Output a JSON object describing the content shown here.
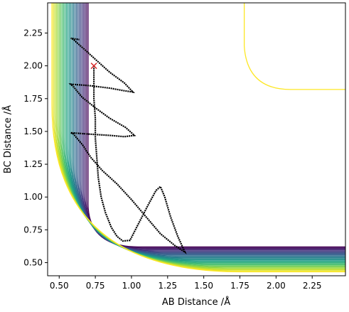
{
  "chart_data": {
    "type": "contour",
    "xlabel": "AB Distance /Å",
    "ylabel": "BC Distance /Å",
    "xlim": [
      0.42,
      2.48
    ],
    "ylim": [
      0.4,
      2.48
    ],
    "xticks": [
      "0.50",
      "0.75",
      "1.00",
      "1.25",
      "1.50",
      "1.75",
      "2.00",
      "2.25"
    ],
    "yticks": [
      "0.50",
      "0.75",
      "1.00",
      "1.25",
      "1.50",
      "1.75",
      "2.00",
      "2.25"
    ],
    "xtick_values": [
      0.5,
      0.75,
      1.0,
      1.25,
      1.5,
      1.75,
      2.0,
      2.25
    ],
    "ytick_values": [
      0.5,
      0.75,
      1.0,
      1.25,
      1.5,
      1.75,
      2.0,
      2.25
    ],
    "grid": false,
    "colormap": "viridis",
    "colormap_colors": [
      "#440154",
      "#46327e",
      "#365c8d",
      "#277f8e",
      "#1fa187",
      "#4ac16d",
      "#a0da39",
      "#fde725"
    ],
    "start_point": {
      "x": 0.74,
      "y": 2.0,
      "marker": "x",
      "color": "#d62728"
    },
    "trajectory_color": "#000000",
    "trajectory": [
      [
        0.74,
        2.0
      ],
      [
        0.74,
        1.9
      ],
      [
        0.74,
        1.75
      ],
      [
        0.75,
        1.6
      ],
      [
        0.75,
        1.45
      ],
      [
        0.76,
        1.3
      ],
      [
        0.77,
        1.15
      ],
      [
        0.79,
        1.0
      ],
      [
        0.82,
        0.88
      ],
      [
        0.86,
        0.77
      ],
      [
        0.9,
        0.7
      ],
      [
        0.94,
        0.665
      ],
      [
        0.99,
        0.67
      ],
      [
        1.05,
        0.8
      ],
      [
        1.12,
        0.95
      ],
      [
        1.17,
        1.05
      ],
      [
        1.2,
        1.08
      ],
      [
        1.23,
        1.0
      ],
      [
        1.27,
        0.85
      ],
      [
        1.32,
        0.7
      ],
      [
        1.37,
        0.58
      ],
      [
        1.3,
        0.63
      ],
      [
        1.2,
        0.72
      ],
      [
        1.1,
        0.85
      ],
      [
        1.0,
        0.98
      ],
      [
        0.9,
        1.1
      ],
      [
        0.8,
        1.2
      ],
      [
        0.72,
        1.3
      ],
      [
        0.66,
        1.4
      ],
      [
        0.6,
        1.48
      ],
      [
        0.58,
        1.49
      ],
      [
        0.7,
        1.48
      ],
      [
        0.85,
        1.47
      ],
      [
        0.95,
        1.46
      ],
      [
        1.02,
        1.47
      ],
      [
        0.96,
        1.53
      ],
      [
        0.85,
        1.6
      ],
      [
        0.75,
        1.68
      ],
      [
        0.66,
        1.76
      ],
      [
        0.6,
        1.84
      ],
      [
        0.58,
        1.86
      ],
      [
        0.7,
        1.85
      ],
      [
        0.85,
        1.83
      ],
      [
        0.95,
        1.81
      ],
      [
        1.01,
        1.8
      ],
      [
        0.95,
        1.87
      ],
      [
        0.85,
        1.95
      ],
      [
        0.75,
        2.05
      ],
      [
        0.66,
        2.14
      ],
      [
        0.6,
        2.2
      ],
      [
        0.58,
        2.21
      ],
      [
        0.64,
        2.2
      ]
    ]
  }
}
